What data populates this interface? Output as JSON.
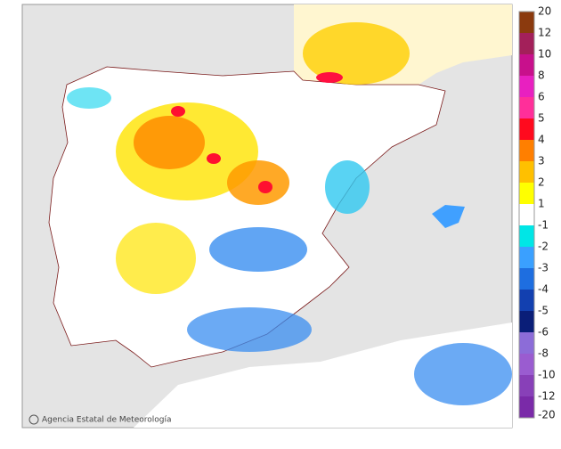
{
  "legend": {
    "labels": [
      20,
      12,
      10,
      8,
      6,
      5,
      4,
      3,
      2,
      1,
      -1,
      -2,
      -3,
      -4,
      -5,
      -6,
      -8,
      -10,
      -12,
      -20
    ],
    "colors": [
      "#8b3a0e",
      "#a3205a",
      "#c8108c",
      "#e820c0",
      "#ff2f9a",
      "#ff0a1e",
      "#ff7f00",
      "#ffc000",
      "#ffff00",
      "#ffffff",
      "#00e6e6",
      "#3aa0ff",
      "#1e6ee0",
      "#1240b0",
      "#0a1e78",
      "#8c6cd8",
      "#9a5cd0",
      "#8840b8",
      "#7a2aa8"
    ]
  },
  "credit": "Agencia Estatal de Meteorología"
}
